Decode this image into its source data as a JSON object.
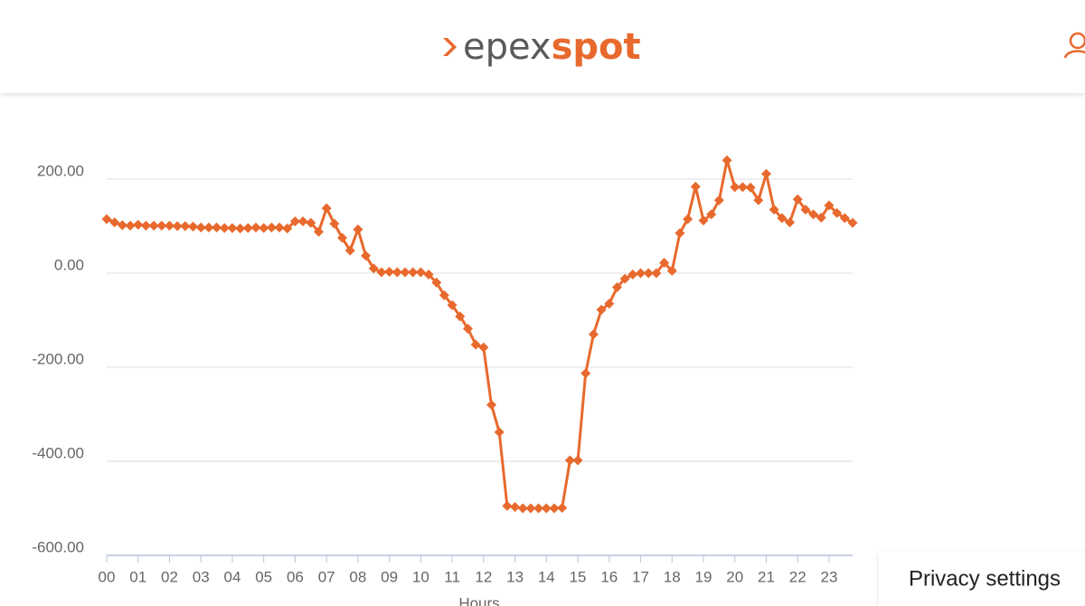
{
  "header": {
    "logo": {
      "part1": "epex",
      "part2": "spot"
    }
  },
  "chart_data": {
    "type": "line",
    "x_label": "Hours",
    "categories": [
      "00",
      null,
      null,
      null,
      "01",
      null,
      null,
      null,
      "02",
      null,
      null,
      null,
      "03",
      null,
      null,
      null,
      "04",
      null,
      null,
      null,
      "05",
      null,
      null,
      null,
      "06",
      null,
      null,
      null,
      "07",
      null,
      null,
      null,
      "08",
      null,
      null,
      null,
      "09",
      null,
      null,
      null,
      "10",
      null,
      null,
      null,
      "11",
      null,
      null,
      null,
      "12",
      null,
      null,
      null,
      "13",
      null,
      null,
      null,
      "14",
      null,
      null,
      null,
      "15",
      null,
      null,
      null,
      "16",
      null,
      null,
      null,
      "17",
      null,
      null,
      null,
      "18",
      null,
      null,
      null,
      "19",
      null,
      null,
      null,
      "20",
      null,
      null,
      null,
      "21",
      null,
      null,
      null,
      "22",
      null,
      null,
      null,
      "23",
      null,
      null,
      null
    ],
    "values": [
      115,
      108,
      102,
      101,
      103,
      101,
      101,
      101,
      101,
      100,
      100,
      99,
      97,
      97,
      97,
      96,
      96,
      95,
      96,
      97,
      96,
      97,
      97,
      95,
      110,
      110,
      107,
      88,
      138,
      105,
      75,
      48,
      93,
      37,
      10,
      2,
      3,
      2,
      2,
      2,
      2,
      -3,
      -20,
      -47,
      -68,
      -92,
      -118,
      -152,
      -158,
      -280,
      -338,
      -495,
      -497,
      -500,
      -500,
      -500,
      -500,
      -500,
      -499,
      -398,
      -398,
      -213,
      -130,
      -78,
      -65,
      -30,
      -12,
      -3,
      0,
      0,
      0,
      22,
      5,
      85,
      115,
      184,
      112,
      125,
      155,
      240,
      183,
      183,
      182,
      155,
      211,
      135,
      117,
      108,
      157,
      135,
      125,
      118,
      144,
      128,
      117,
      107
    ],
    "color": "#e8692d",
    "ylim": [
      -600,
      230
    ],
    "yticks": [
      {
        "value": -600,
        "label": "-600.00"
      },
      {
        "value": -400,
        "label": "-400.00"
      },
      {
        "value": -200,
        "label": "-200.00"
      },
      {
        "value": 0,
        "label": "0.00"
      },
      {
        "value": 200,
        "label": "200.00"
      }
    ],
    "grid": true
  },
  "privacy_settings": "Privacy settings"
}
